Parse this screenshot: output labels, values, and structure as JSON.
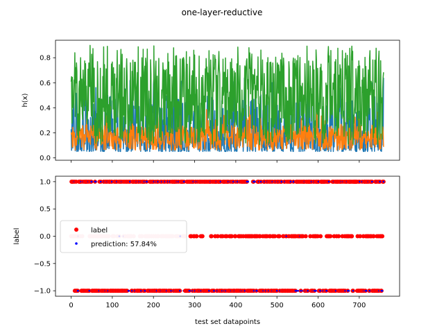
{
  "chart_data": [
    {
      "type": "line",
      "title": "one-layer-reductive",
      "xlabel": "",
      "ylabel": "h(x)",
      "xlim": [
        -38,
        798
      ],
      "ylim": [
        -0.02,
        0.94
      ],
      "xticks": [
        0,
        100,
        200,
        300,
        400,
        500,
        600,
        700
      ],
      "yticks": [
        0.0,
        0.2,
        0.4,
        0.6,
        0.8
      ],
      "ytick_labels": [
        "0.0",
        "0.2",
        "0.4",
        "0.6",
        "0.8"
      ],
      "x_range": [
        0,
        759
      ],
      "series": [
        {
          "color": "#1f77b4",
          "approx_range": [
            0.04,
            0.64
          ],
          "typical": 0.15
        },
        {
          "color": "#ff7f0e",
          "approx_range": [
            0.05,
            0.43
          ],
          "typical": 0.17
        },
        {
          "color": "#2ca02c",
          "approx_range": [
            0.08,
            0.9
          ],
          "typical": 0.4
        }
      ]
    },
    {
      "type": "scatter",
      "xlabel": "test set datapoints",
      "ylabel": "label",
      "xlim": [
        -38,
        798
      ],
      "ylim": [
        -1.1,
        1.1
      ],
      "xticks": [
        0,
        100,
        200,
        300,
        400,
        500,
        600,
        700
      ],
      "xtick_labels": [
        "0",
        "100",
        "200",
        "300",
        "400",
        "500",
        "600",
        "700"
      ],
      "yticks": [
        -1.0,
        -0.5,
        0.0,
        0.5,
        1.0
      ],
      "ytick_labels": [
        "−1.0",
        "−0.5",
        "0.0",
        "0.5",
        "1.0"
      ],
      "levels": [
        -1,
        0,
        1
      ],
      "x_range": [
        0,
        759
      ],
      "legend": {
        "placement": "center-left",
        "entries": [
          {
            "label": "label",
            "color": "#ff0000"
          },
          {
            "label": "prediction: 57.84%",
            "color": "#0000ff"
          }
        ]
      },
      "series": [
        {
          "name": "label",
          "color": "#ff0000"
        },
        {
          "name": "prediction: 57.84%",
          "color": "#0000ff"
        }
      ],
      "overlap_color": "#ffc0cb"
    }
  ]
}
